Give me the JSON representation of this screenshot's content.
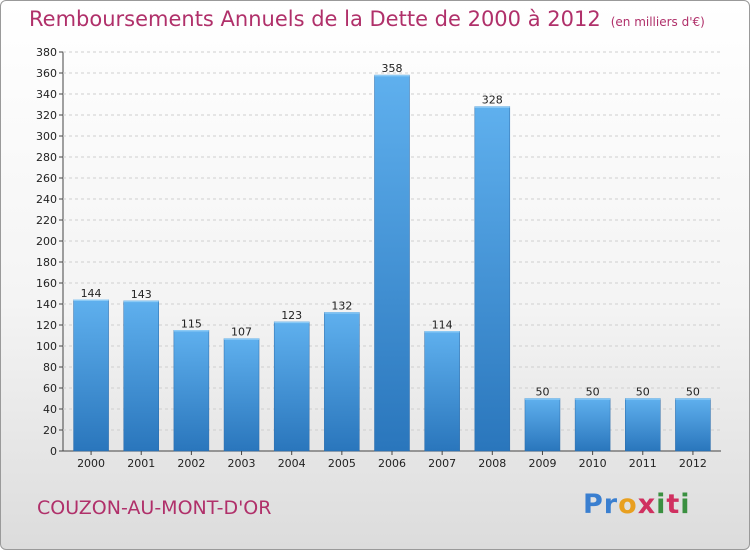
{
  "title": "Remboursements Annuels de la Dette de 2000 à 2012",
  "subtitle": "(en milliers d'€)",
  "city": "COUZON-AU-MONT-D'OR",
  "logo": {
    "letters": [
      "P",
      "r",
      "o",
      "x",
      "i",
      "t",
      "i"
    ],
    "colors": [
      "#3a7fd0",
      "#3a7fd0",
      "#e8a020",
      "#d03060",
      "#3a9040",
      "#d03060",
      "#3a9040"
    ]
  },
  "colors": {
    "bar": "#3a90d8",
    "bar_light": "#5aacec",
    "bar_dark": "#2a74b8",
    "title": "#b0306a"
  },
  "chart_data": {
    "type": "bar",
    "categories": [
      "2000",
      "2001",
      "2002",
      "2003",
      "2004",
      "2005",
      "2006",
      "2007",
      "2008",
      "2009",
      "2010",
      "2011",
      "2012"
    ],
    "values": [
      144,
      143,
      115,
      107,
      123,
      132,
      358,
      114,
      328,
      50,
      50,
      50,
      50
    ],
    "title": "Remboursements Annuels de la Dette de 2000 à 2012",
    "xlabel": "",
    "ylabel": "",
    "ylim": [
      0,
      380
    ],
    "ytick_step": 20,
    "grid": true,
    "legend": "none"
  }
}
